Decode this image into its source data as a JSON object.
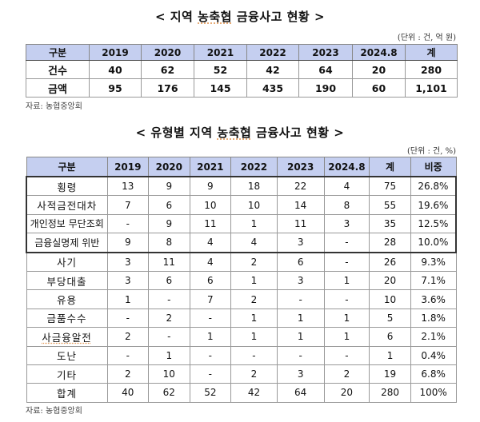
{
  "table1": {
    "title_prefix": "< 지역 ",
    "title_spell": "농축협",
    "title_suffix": " 금융사고 현황 >",
    "unit": "(단위 : 건, 억 원)",
    "headers": [
      "구분",
      "2019",
      "2020",
      "2021",
      "2022",
      "2023",
      "2024.8",
      "계"
    ],
    "rows": [
      {
        "label": "건수",
        "values": [
          "40",
          "62",
          "52",
          "42",
          "64",
          "20",
          "280"
        ]
      },
      {
        "label": "금액",
        "values": [
          "95",
          "176",
          "145",
          "435",
          "190",
          "60",
          "1,101"
        ]
      }
    ],
    "source": "자료: 농협중앙회"
  },
  "table2": {
    "title_prefix": "< 유형별 지역 ",
    "title_spell": "농축협",
    "title_suffix": " 금융사고 현황 >",
    "unit": "(단위 : 건, %)",
    "headers": [
      "구분",
      "2019",
      "2020",
      "2021",
      "2022",
      "2023",
      "2024.8",
      "계",
      "비중"
    ],
    "rows": [
      {
        "label": "횡령",
        "values": [
          "13",
          "9",
          "9",
          "18",
          "22",
          "4",
          "75",
          "26.8%"
        ]
      },
      {
        "label": "사적금전대차",
        "values": [
          "7",
          "6",
          "10",
          "10",
          "14",
          "8",
          "55",
          "19.6%"
        ]
      },
      {
        "label": "개인정보 무단조회",
        "values": [
          "-",
          "9",
          "11",
          "1",
          "11",
          "3",
          "35",
          "12.5%"
        ]
      },
      {
        "label": "금융실명제 위반",
        "values": [
          "9",
          "8",
          "4",
          "4",
          "3",
          "-",
          "28",
          "10.0%"
        ]
      },
      {
        "label": "사기",
        "values": [
          "3",
          "11",
          "4",
          "2",
          "6",
          "-",
          "26",
          "9.3%"
        ]
      },
      {
        "label": "부당대출",
        "values": [
          "3",
          "6",
          "6",
          "1",
          "3",
          "1",
          "20",
          "7.1%"
        ]
      },
      {
        "label": "유용",
        "values": [
          "1",
          "-",
          "7",
          "2",
          "-",
          "-",
          "10",
          "3.6%"
        ]
      },
      {
        "label": "금품수수",
        "values": [
          "-",
          "2",
          "-",
          "1",
          "1",
          "1",
          "5",
          "1.8%"
        ]
      },
      {
        "label": "사금융알전",
        "values": [
          "2",
          "-",
          "1",
          "1",
          "1",
          "1",
          "6",
          "2.1%"
        ]
      },
      {
        "label": "도난",
        "values": [
          "-",
          "1",
          "-",
          "-",
          "-",
          "-",
          "1",
          "0.4%"
        ]
      },
      {
        "label": "기타",
        "values": [
          "2",
          "10",
          "-",
          "2",
          "3",
          "2",
          "19",
          "6.8%"
        ]
      },
      {
        "label": "합계",
        "values": [
          "40",
          "62",
          "52",
          "42",
          "64",
          "20",
          "280",
          "100%"
        ]
      }
    ],
    "source": "자료: 농협중앙회"
  },
  "colors": {
    "header_bg": "#c5cff0",
    "border": "#444444",
    "spellcheck_underline": "#e0904a"
  }
}
